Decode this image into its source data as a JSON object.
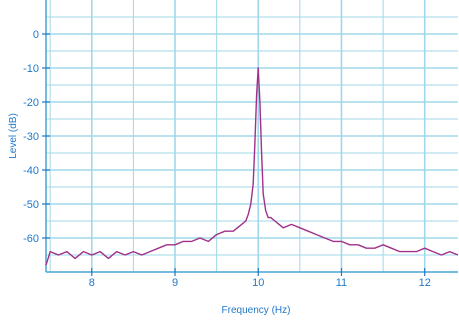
{
  "chart_data": {
    "type": "line",
    "title": "",
    "xlabel": "Frequency (Hz)",
    "ylabel": "Level (dB)",
    "xlim": [
      7.45,
      12.4
    ],
    "ylim": [
      -70,
      10
    ],
    "x_ticks": [
      8,
      9,
      10,
      11,
      12
    ],
    "x_tick_labels": [
      "8",
      "9",
      "10",
      "11",
      "12"
    ],
    "y_ticks": [
      0,
      -10,
      -20,
      -30,
      -40,
      -50,
      -60
    ],
    "y_tick_labels": [
      "0",
      "-10",
      "-20",
      "-30",
      "-40",
      "-50",
      "-60"
    ],
    "grid": true,
    "legend": "none",
    "colors": {
      "line": "#a0308a",
      "grid": "#9fd8e8",
      "axis": "#1f78c8",
      "border": "#4aa3d6"
    },
    "series": [
      {
        "x": [
          7.45,
          7.5,
          7.6,
          7.7,
          7.8,
          7.9,
          8.0,
          8.1,
          8.2,
          8.3,
          8.4,
          8.5,
          8.6,
          8.7,
          8.8,
          8.9,
          9.0,
          9.1,
          9.2,
          9.3,
          9.4,
          9.5,
          9.6,
          9.7,
          9.75,
          9.8,
          9.85,
          9.88,
          9.91,
          9.94,
          9.96,
          9.98,
          10.0,
          10.02,
          10.04,
          10.06,
          10.09,
          10.12,
          10.15,
          10.2,
          10.25,
          10.3,
          10.4,
          10.5,
          10.6,
          10.7,
          10.8,
          10.9,
          11.0,
          11.1,
          11.2,
          11.3,
          11.4,
          11.5,
          11.6,
          11.7,
          11.8,
          11.9,
          12.0,
          12.1,
          12.2,
          12.3,
          12.4
        ],
        "y": [
          -68,
          -64,
          -65,
          -64,
          -66,
          -64,
          -65,
          -64,
          -66,
          -64,
          -65,
          -64,
          -65,
          -64,
          -63,
          -62,
          -62,
          -61,
          -61,
          -60,
          -61,
          -59,
          -58,
          -58,
          -57,
          -56,
          -55,
          -53,
          -50,
          -44,
          -32,
          -18,
          -10,
          -20,
          -35,
          -47,
          -52,
          -54,
          -54,
          -55,
          -56,
          -57,
          -56,
          -57,
          -58,
          -59,
          -60,
          -61,
          -61,
          -62,
          -62,
          -63,
          -63,
          -62,
          -63,
          -64,
          -64,
          -64,
          -63,
          -64,
          -65,
          -64,
          -65
        ]
      }
    ]
  }
}
